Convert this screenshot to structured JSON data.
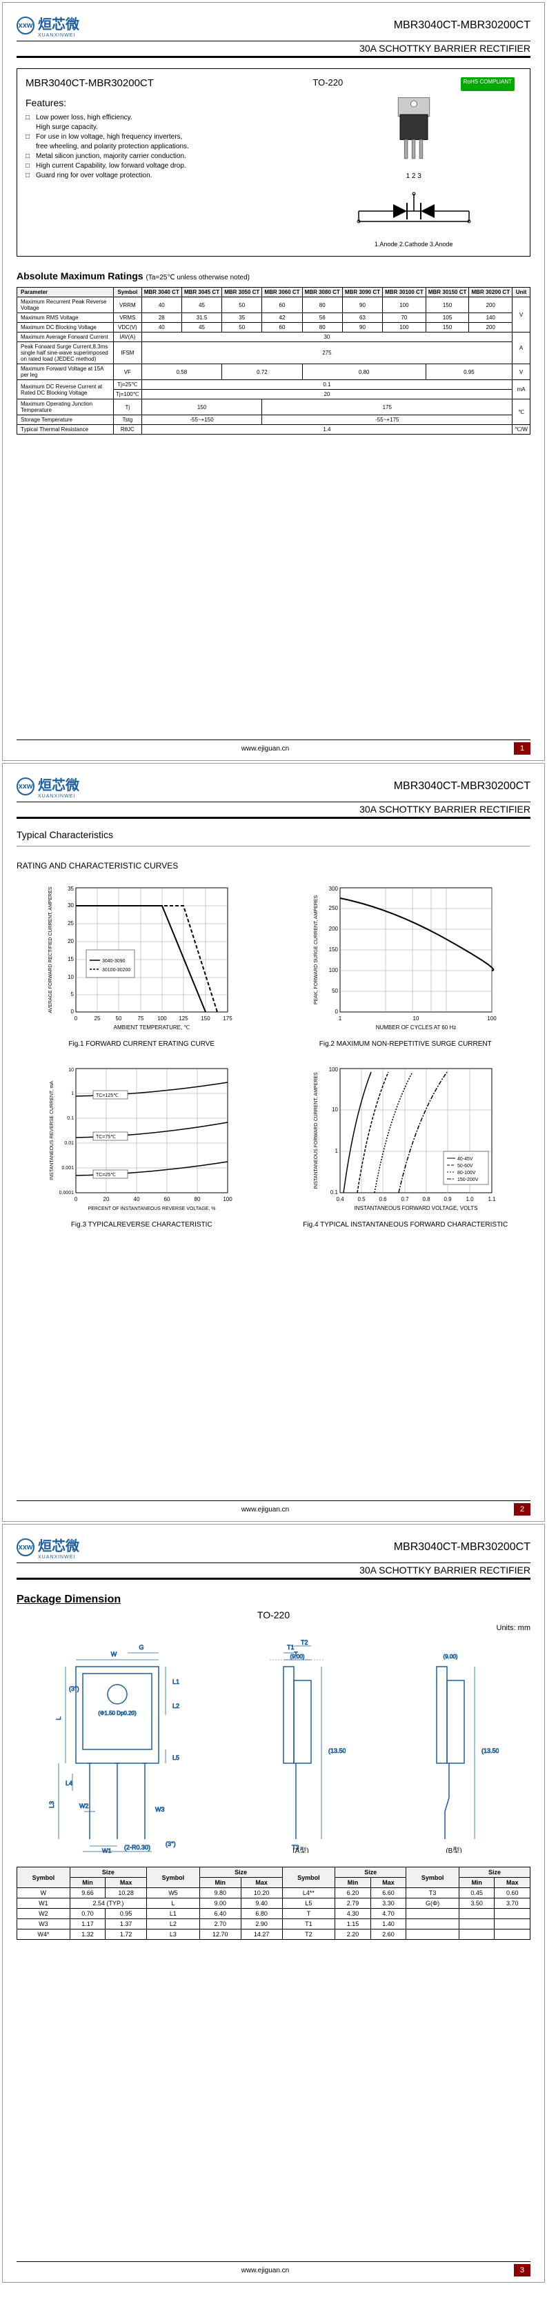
{
  "logo": {
    "chinese": "烜芯微",
    "pinyin": "XUANXINWEI",
    "icon": "xxw"
  },
  "partNumber": "MBR3040CT-MBR30200CT",
  "productTitle": "30A SCHOTTKY BARRIER RECTIFIER",
  "footerLink": "www.ejiguan.cn",
  "package": {
    "name": "TO-220",
    "rohs": "RoHS COMPLIANT",
    "pins": "1 2 3",
    "pinLabels": "1.Anode   2.Cathode   3.Anode"
  },
  "featuresBox": {
    "title": "MBR3040CT-MBR30200CT",
    "heading": "Features:",
    "items": [
      {
        "text": "Low power loss, high efficiency."
      },
      {
        "sub": "High surge capacity."
      },
      {
        "text": "For use in low voltage, high frequency inverters,"
      },
      {
        "sub": "free wheeling, and polarity protection applications."
      },
      {
        "text": "Metal silicon junction, majority carrier conduction."
      },
      {
        "text": "High current Capability, low forward voltage drop."
      },
      {
        "text": "Guard ring for over voltage protection."
      }
    ]
  },
  "ratings": {
    "title": "Absolute Maximum Ratings",
    "note": "(Ta=25℃ unless otherwise noted)",
    "headers": [
      "Parameter",
      "Symbol",
      "MBR 3040 CT",
      "MBR 3045 CT",
      "MBR 3050 CT",
      "MBR 3060 CT",
      "MBR 3080 CT",
      "MBR 3090 CT",
      "MBR 30100 CT",
      "MBR 30150 CT",
      "MBR 30200 CT",
      "Unit"
    ],
    "rows": [
      {
        "p": "Maximum Recurrent Peak Reverse Voltage",
        "s": "VRRM",
        "v": [
          "40",
          "45",
          "50",
          "60",
          "80",
          "90",
          "100",
          "150",
          "200"
        ],
        "u": "V",
        "rs": 3
      },
      {
        "p": "Maximum RMS Voltage",
        "s": "VRMS",
        "v": [
          "28",
          "31.5",
          "35",
          "42",
          "56",
          "63",
          "70",
          "105",
          "140"
        ],
        "u": ""
      },
      {
        "p": "Maximum DC Blocking Voltage",
        "s": "VDC(V)",
        "v": [
          "40",
          "45",
          "50",
          "60",
          "80",
          "90",
          "100",
          "150",
          "200"
        ],
        "u": ""
      },
      {
        "p": "Maximum Average Forward Current",
        "s": "IAV(A)",
        "v": [
          "30"
        ],
        "span": 9,
        "u": "A",
        "rs": 2
      },
      {
        "p": "Peak Forward Surge Current,8.3ms single half sine-wave superimposed on rated load (JEDEC method)",
        "s": "IFSM",
        "v": [
          "275"
        ],
        "span": 9,
        "u": ""
      },
      {
        "p": "Maximum Forward Voltage at 15A per leg",
        "s": "VF",
        "v": [
          "0.58",
          "",
          "0.72",
          "",
          "0.80",
          "",
          "",
          "0.95",
          ""
        ],
        "g": [
          2,
          2,
          3,
          2
        ],
        "u": "V"
      },
      {
        "p": "Maximum DC Reverse Current at Rated DC Blocking Voltage",
        "s": "IR",
        "sub": [
          "Tj=25℃",
          "Tj=100℃"
        ],
        "v": [
          [
            "0.1"
          ],
          [
            "20"
          ]
        ],
        "span": 9,
        "u": "mA"
      },
      {
        "p": "Maximum Operating Junction Temperature",
        "s": "Tj",
        "v": [
          "150",
          "",
          "",
          "175",
          "",
          "",
          "",
          "",
          ""
        ],
        "g": [
          3,
          6
        ],
        "u": "℃"
      },
      {
        "p": "Storage Temperature",
        "s": "Tstg",
        "v": [
          "-55~+150",
          "",
          "",
          "-55~+175",
          "",
          "",
          "",
          "",
          ""
        ],
        "g": [
          3,
          6
        ],
        "u": ""
      },
      {
        "p": "Typical Thermal Resistance",
        "s": "RθJC",
        "v": [
          "1.4"
        ],
        "span": 9,
        "u": "℃/W"
      }
    ]
  },
  "page2": {
    "title": "Typical Characteristics",
    "curvesTitle": "RATING AND CHARACTERISTIC CURVES",
    "charts": [
      {
        "title": "Fig.1 FORWARD CURRENT ERATING CURVE",
        "ylabel": "AVERAGE FORWARD RECTIFIED CURRENT,\nAMPERES",
        "xlabel": "AMBIENT TEMPERATURE, ℃",
        "xlim": [
          0,
          175
        ],
        "ylim": [
          0,
          35
        ],
        "legend": [
          "3040-3090",
          "30100-30200"
        ],
        "note": "Single Phase Half Wave 60Hz Resistive or Inductive Load"
      },
      {
        "title": "Fig.2 MAXIMUM NON-REPETITIVE SURGE CURRENT",
        "ylabel": "PEAK, FORWARD SURGE CURRENT,\nAMPERES",
        "xlabel": "NUMBER OF CYCLES AT 60 Hz",
        "xlim": [
          1,
          100
        ],
        "ylim": [
          0,
          300
        ],
        "note": "8.3ms SINGLE HALF SINE-WAVE (JEDEC Method)"
      },
      {
        "title": "Fig.3 TYPICALREVERSE CHARACTERISTIC",
        "ylabel": "INSTANTANEOUS REVERSE CURRENT, mA",
        "xlabel": "PERCENT OF INSTANTANEOUS REVERSE VOLTAGE, %",
        "xlim": [
          0,
          100
        ],
        "ylim": [
          0.0001,
          10
        ],
        "legend": [
          "TC=125℃",
          "TC=75℃",
          "TC=25℃"
        ]
      },
      {
        "title": "Fig.4 TYPICAL INSTANTANEOUS FORWARD CHARACTERISTIC",
        "ylabel": "INSTANTANEOUS FORWARD CURRENT,\nAMPERES",
        "xlabel": "INSTANTANEOUS FORWARD VOLTAGE, VOLTS",
        "xlim": [
          0.4,
          1.1
        ],
        "ylim": [
          0.1,
          100
        ],
        "legend": [
          "40-45V",
          "50-60V",
          "80-100V",
          "150-200V"
        ]
      }
    ]
  },
  "page3": {
    "title": "Package Dimension",
    "package": "TO-220",
    "units": "Units: mm",
    "viewLabels": [
      "(A型)",
      "(B型)"
    ],
    "dimensions": {
      "headers": [
        "Symbol",
        "Min",
        "Max"
      ],
      "groups": [
        [
          [
            "W",
            "9.66",
            "10.28"
          ],
          [
            "W1",
            "2.54 (TYP.)",
            ""
          ],
          [
            "W2",
            "0.70",
            "0.95"
          ],
          [
            "W3",
            "1.17",
            "1.37"
          ],
          [
            "W4*",
            "1.32",
            "1.72"
          ]
        ],
        [
          [
            "W5",
            "9.80",
            "10.20"
          ],
          [
            "L",
            "9.00",
            "9.40"
          ],
          [
            "L1",
            "6.40",
            "6.80"
          ],
          [
            "L2",
            "2.70",
            "2.90"
          ],
          [
            "L3",
            "12.70",
            "14.27"
          ]
        ],
        [
          [
            "L4**",
            "6.20",
            "6.60"
          ],
          [
            "L5",
            "2.79",
            "3.30"
          ],
          [
            "T",
            "4.30",
            "4.70"
          ],
          [
            "T1",
            "1.15",
            "1.40"
          ],
          [
            "T2",
            "2.20",
            "2.60"
          ]
        ],
        [
          [
            "T3",
            "0.45",
            "0.60"
          ],
          [
            "G(Φ)",
            "3.50",
            "3.70"
          ],
          [
            "",
            "",
            ""
          ],
          [
            "",
            "",
            ""
          ],
          [
            "",
            "",
            ""
          ]
        ]
      ]
    },
    "dims": {
      "ref1": "(9.00)",
      "ref2": "(13.50)"
    }
  }
}
